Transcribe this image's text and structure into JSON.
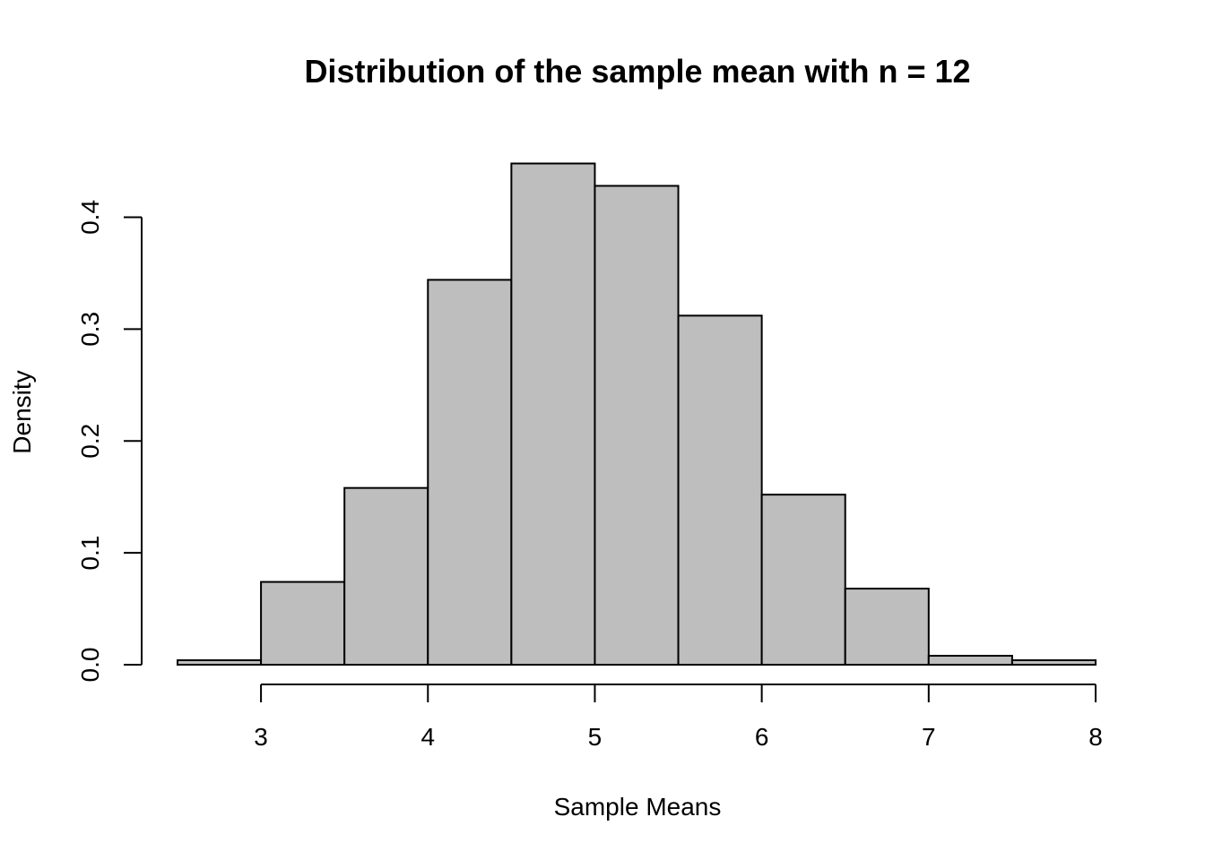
{
  "chart_data": {
    "type": "bar",
    "title": "Distribution of the sample mean with n = 12",
    "xlabel": "Sample Means",
    "ylabel": "Density",
    "bin_edges": [
      2.5,
      3.0,
      3.5,
      4.0,
      4.5,
      5.0,
      5.5,
      6.0,
      6.5,
      7.0,
      7.5,
      8.0
    ],
    "values": [
      0.004,
      0.074,
      0.158,
      0.344,
      0.448,
      0.428,
      0.312,
      0.152,
      0.068,
      0.008,
      0.004
    ],
    "xlim": [
      2.5,
      8.0
    ],
    "ylim": [
      0,
      0.45
    ],
    "x_ticks": [
      3,
      4,
      5,
      6,
      7,
      8
    ],
    "x_tick_labels": [
      "3",
      "4",
      "5",
      "6",
      "7",
      "8"
    ],
    "y_ticks": [
      0.0,
      0.1,
      0.2,
      0.3,
      0.4
    ],
    "y_tick_labels": [
      "0.0",
      "0.1",
      "0.2",
      "0.3",
      "0.4"
    ],
    "bar_color": "#bebebe",
    "edge_color": "#000000",
    "grid": false
  }
}
